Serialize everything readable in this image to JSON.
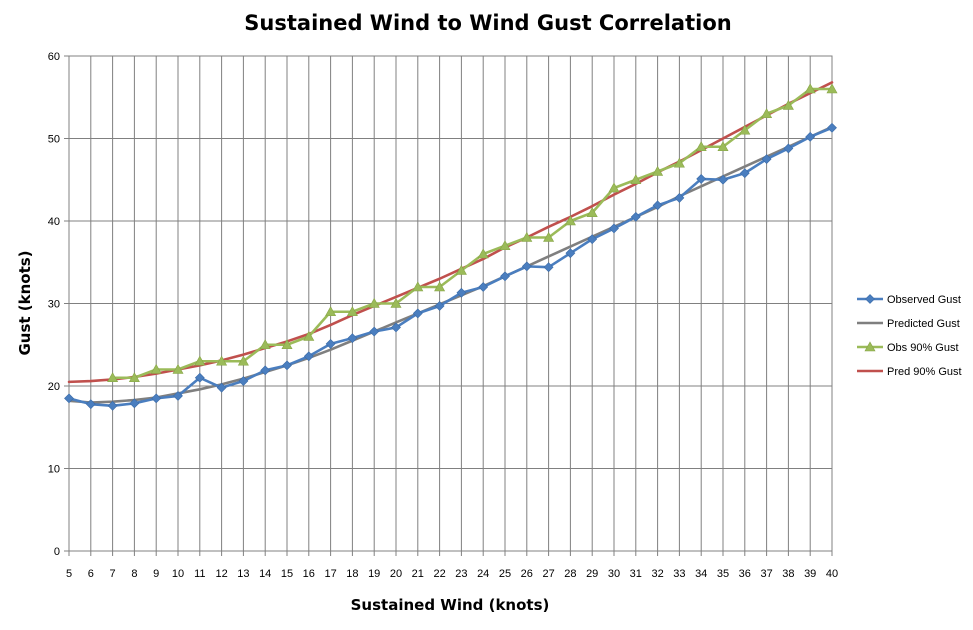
{
  "chart_data": {
    "type": "line",
    "title": "Sustained Wind to Wind Gust Correlation",
    "xlabel": "Sustained Wind (knots)",
    "ylabel": "Gust (knots)",
    "x": [
      5,
      6,
      7,
      8,
      9,
      10,
      11,
      12,
      13,
      14,
      15,
      16,
      17,
      18,
      19,
      20,
      21,
      22,
      23,
      24,
      25,
      26,
      27,
      28,
      29,
      30,
      31,
      32,
      33,
      34,
      35,
      36,
      37,
      38,
      39,
      40
    ],
    "ylim": [
      0,
      60
    ],
    "yticks": [
      0,
      10,
      20,
      30,
      40,
      50,
      60
    ],
    "grid": "vertical and horizontal",
    "legend": "right",
    "series": [
      {
        "name": "Observed Gust",
        "color": "#4a7ebf",
        "marker": "diamond",
        "values": [
          18.5,
          17.8,
          17.6,
          17.9,
          18.5,
          18.8,
          21.0,
          19.8,
          20.6,
          21.9,
          22.5,
          23.6,
          25.1,
          25.8,
          26.6,
          27.1,
          28.8,
          29.7,
          31.3,
          32.0,
          33.3,
          34.5,
          34.4,
          36.1,
          37.8,
          39.1,
          40.5,
          41.9,
          42.8,
          45.1,
          45.0,
          45.8,
          47.5,
          48.8,
          50.2,
          51.3
        ]
      },
      {
        "name": "Predicted Gust",
        "color": "#7f7f7f",
        "marker": "none",
        "values": [
          18.2,
          18.0,
          18.1,
          18.3,
          18.6,
          19.1,
          19.6,
          20.2,
          20.9,
          21.7,
          22.5,
          23.4,
          24.4,
          25.5,
          26.6,
          27.7,
          28.8,
          29.9,
          31.0,
          32.1,
          33.3,
          34.5,
          35.7,
          36.9,
          38.1,
          39.3,
          40.5,
          41.7,
          43.0,
          44.2,
          45.4,
          46.6,
          47.8,
          49.0,
          50.2,
          51.4
        ]
      },
      {
        "name": "Obs 90% Gust",
        "color": "#9bbb59",
        "marker": "triangle",
        "values": [
          null,
          null,
          21,
          21,
          22,
          22,
          23,
          23,
          23,
          25,
          25,
          26,
          29,
          29,
          30,
          30,
          32,
          32,
          34,
          36,
          37,
          38,
          38,
          40,
          41,
          44,
          45,
          46,
          47,
          49,
          49,
          51,
          53,
          54,
          56,
          56
        ]
      },
      {
        "name": "Pred 90% Gust",
        "color": "#c0504d",
        "marker": "none",
        "values": [
          20.5,
          20.6,
          20.8,
          21.1,
          21.5,
          22.0,
          22.5,
          23.1,
          23.8,
          24.6,
          25.4,
          26.3,
          27.4,
          28.6,
          29.7,
          30.8,
          31.9,
          33.0,
          34.2,
          35.4,
          36.8,
          38.0,
          39.3,
          40.5,
          41.8,
          43.2,
          44.5,
          45.9,
          47.2,
          48.6,
          50.0,
          51.4,
          52.8,
          54.2,
          55.5,
          56.8
        ]
      }
    ]
  }
}
